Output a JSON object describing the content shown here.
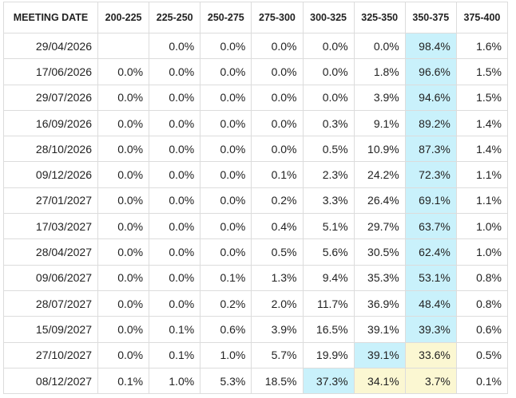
{
  "table": {
    "headers": [
      "MEETING DATE",
      "200-225",
      "225-250",
      "250-275",
      "275-300",
      "300-325",
      "325-350",
      "350-375",
      "375-400"
    ],
    "rows": [
      [
        "29/04/2026",
        null,
        "0.0%",
        "0.0%",
        "0.0%",
        "0.0%",
        "0.0%",
        "98.4%",
        "1.6%"
      ],
      [
        "17/06/2026",
        "0.0%",
        "0.0%",
        "0.0%",
        "0.0%",
        "0.0%",
        "1.8%",
        "96.6%",
        "1.5%"
      ],
      [
        "29/07/2026",
        "0.0%",
        "0.0%",
        "0.0%",
        "0.0%",
        "0.0%",
        "3.9%",
        "94.6%",
        "1.5%"
      ],
      [
        "16/09/2026",
        "0.0%",
        "0.0%",
        "0.0%",
        "0.0%",
        "0.3%",
        "9.1%",
        "89.2%",
        "1.4%"
      ],
      [
        "28/10/2026",
        "0.0%",
        "0.0%",
        "0.0%",
        "0.0%",
        "0.5%",
        "10.9%",
        "87.3%",
        "1.4%"
      ],
      [
        "09/12/2026",
        "0.0%",
        "0.0%",
        "0.0%",
        "0.1%",
        "2.3%",
        "24.2%",
        "72.3%",
        "1.1%"
      ],
      [
        "27/01/2027",
        "0.0%",
        "0.0%",
        "0.0%",
        "0.2%",
        "3.3%",
        "26.4%",
        "69.1%",
        "1.1%"
      ],
      [
        "17/03/2027",
        "0.0%",
        "0.0%",
        "0.0%",
        "0.4%",
        "5.1%",
        "29.7%",
        "63.7%",
        "1.0%"
      ],
      [
        "28/04/2027",
        "0.0%",
        "0.0%",
        "0.0%",
        "0.5%",
        "5.6%",
        "30.5%",
        "62.4%",
        "1.0%"
      ],
      [
        "09/06/2027",
        "0.0%",
        "0.0%",
        "0.1%",
        "1.3%",
        "9.4%",
        "35.3%",
        "53.1%",
        "0.8%"
      ],
      [
        "28/07/2027",
        "0.0%",
        "0.0%",
        "0.2%",
        "2.0%",
        "11.7%",
        "36.9%",
        "48.4%",
        "0.8%"
      ],
      [
        "15/09/2027",
        "0.0%",
        "0.1%",
        "0.6%",
        "3.9%",
        "16.5%",
        "39.1%",
        "39.3%",
        "0.6%"
      ],
      [
        "27/10/2027",
        "0.0%",
        "0.1%",
        "1.0%",
        "5.7%",
        "19.9%",
        "39.1%",
        "33.6%",
        "0.5%"
      ],
      [
        "08/12/2027",
        "0.1%",
        "1.0%",
        "5.3%",
        "18.5%",
        "37.3%",
        "34.1%",
        "3.7%",
        "0.1%"
      ]
    ],
    "highlighted_cells": [
      {
        "row": 0,
        "col": 7,
        "color": "#c9f1fb"
      },
      {
        "row": 1,
        "col": 7,
        "color": "#c9f1fb"
      },
      {
        "row": 2,
        "col": 7,
        "color": "#c9f1fb"
      },
      {
        "row": 3,
        "col": 7,
        "color": "#c9f1fb"
      },
      {
        "row": 4,
        "col": 7,
        "color": "#c9f1fb"
      },
      {
        "row": 5,
        "col": 7,
        "color": "#c9f1fb"
      },
      {
        "row": 6,
        "col": 7,
        "color": "#c9f1fb"
      },
      {
        "row": 7,
        "col": 7,
        "color": "#c9f1fb"
      },
      {
        "row": 8,
        "col": 7,
        "color": "#c9f1fb"
      },
      {
        "row": 9,
        "col": 7,
        "color": "#c9f1fb"
      },
      {
        "row": 10,
        "col": 7,
        "color": "#c9f1fb"
      },
      {
        "row": 11,
        "col": 7,
        "color": "#c9f1fb"
      },
      {
        "row": 12,
        "col": 6,
        "color": "#c9f1fb"
      },
      {
        "row": 12,
        "col": 7,
        "color": "#fbf7d2"
      },
      {
        "row": 13,
        "col": 5,
        "color": "#c9f1fb"
      },
      {
        "row": 13,
        "col": 6,
        "color": "#fbf7d2"
      },
      {
        "row": 13,
        "col": 7,
        "color": "#fbf7d2"
      }
    ]
  }
}
